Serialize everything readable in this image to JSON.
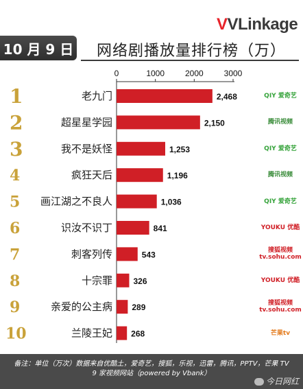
{
  "header": {
    "brand": "VLinkage",
    "date": "10 月 9 日",
    "title": "网络剧播放量排行榜（万）"
  },
  "chart_data": {
    "type": "bar",
    "orientation": "horizontal",
    "title": "网络剧播放量排行榜（万）",
    "xlim": [
      0,
      3000
    ],
    "xticks": [
      0,
      1000,
      2000,
      3000
    ],
    "grid": false,
    "ranks": [
      "1",
      "2",
      "3",
      "4",
      "5",
      "6",
      "7",
      "8",
      "9",
      "10"
    ],
    "categories": [
      "老九门",
      "超星星学园",
      "我不是妖怪",
      "疯狂天后",
      "画江湖之不良人",
      "识汝不识丁",
      "刺客列传",
      "十宗罪",
      "亲爱的公主病",
      "兰陵王妃"
    ],
    "values": [
      2468,
      2150,
      1253,
      1196,
      1036,
      841,
      543,
      326,
      289,
      268
    ],
    "value_labels": [
      "2,468",
      "2,150",
      "1,253",
      "1,196",
      "1,036",
      "841",
      "543",
      "326",
      "289",
      "268"
    ],
    "bar_color": "#d01f26",
    "rank_color": "#c9a23a"
  },
  "platforms": [
    {
      "icon": "iqiyi-logo",
      "text": "QIY 爱奇艺",
      "color": "#35a33a"
    },
    {
      "icon": "tencent-video-logo",
      "text": "腾讯视频",
      "color": "#3a8c3a"
    },
    {
      "icon": "iqiyi-logo",
      "text": "QIY 爱奇艺",
      "color": "#35a33a"
    },
    {
      "icon": "tencent-video-logo",
      "text": "腾讯视频",
      "color": "#3a8c3a"
    },
    {
      "icon": "iqiyi-logo",
      "text": "QIY 爱奇艺",
      "color": "#35a33a"
    },
    {
      "icon": "youku-logo",
      "text": "YOUKU 优酷",
      "color": "#d01f26"
    },
    {
      "icon": "sohu-video-logo",
      "text": "搜狐视频 tv.sohu.com",
      "color": "#d01f26"
    },
    {
      "icon": "youku-logo",
      "text": "YOUKU 优酷",
      "color": "#d01f26"
    },
    {
      "icon": "sohu-video-logo",
      "text": "搜狐视频 tv.sohu.com",
      "color": "#d01f26"
    },
    {
      "icon": "mgtv-logo",
      "text": "芒果tv",
      "color": "#e3791a"
    }
  ],
  "footer": {
    "line1": "备注：单位（万次）数据来自优酷土，爱奇艺，搜狐，乐视，迅雷，腾讯，PPTV，芒果 TV",
    "line2": "9 家视频网站（powered by Vbank）",
    "watermark": "今日网红"
  }
}
